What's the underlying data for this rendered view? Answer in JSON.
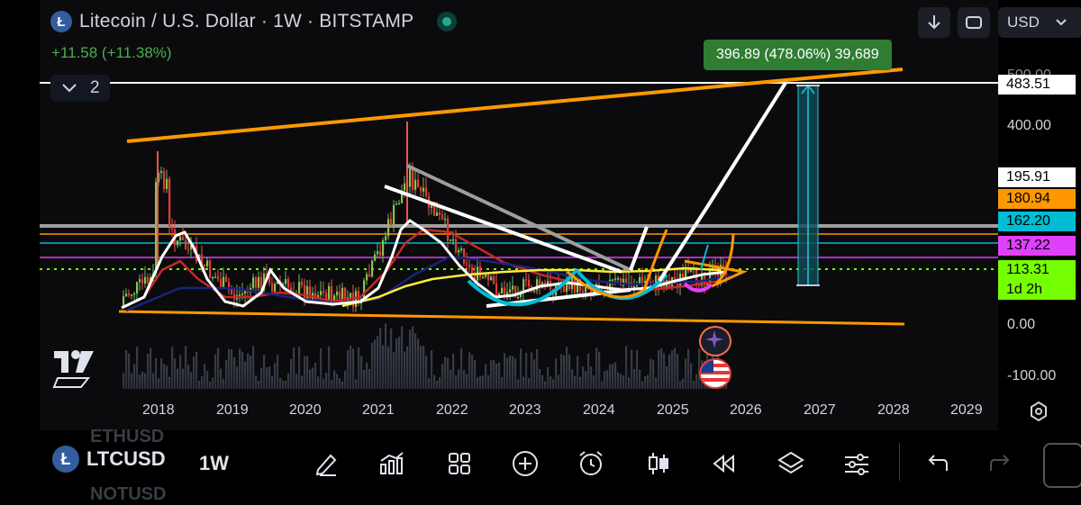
{
  "header": {
    "coin_letter": "Ł",
    "title": "Litecoin / U.S. Dollar · 1W · BITSTAMP",
    "change": "+11.58 (+11.38%)",
    "indicators_count": "2"
  },
  "top_buttons": {
    "currency": "USD"
  },
  "measure_label": "396.89 (478.06%) 39,689",
  "price_labels": [
    {
      "text": "483.51",
      "bg": "#ffffff",
      "fg": "#000000"
    },
    {
      "text": "195.91",
      "bg": "#ffffff",
      "fg": "#000000"
    },
    {
      "text": "180.94",
      "bg": "#ff9800",
      "fg": "#000000"
    },
    {
      "text": "162.20",
      "bg": "#00bcd4",
      "fg": "#000000"
    },
    {
      "text": "137.22",
      "bg": "#e040fb",
      "fg": "#000000"
    },
    {
      "text": "113.31",
      "bg": "#76ff03",
      "fg": "#000000"
    },
    {
      "text": "1d 2h",
      "bg": "#76ff03",
      "fg": "#000000"
    }
  ],
  "axis_labels": [
    "500.00",
    "400.00",
    "0.00",
    "-100.00"
  ],
  "years": [
    "2018",
    "2019",
    "2020",
    "2021",
    "2022",
    "2023",
    "2024",
    "2025",
    "2026",
    "2027",
    "2028",
    "2029"
  ],
  "bottom": {
    "symbol": "LTCUSD",
    "ghost_above": "ETHUSD",
    "ghost_below": "NOTUSD",
    "interval": "1W"
  },
  "icons": [
    "download-icon",
    "fullscreen-icon",
    "chevron-down-icon",
    "pencil-icon",
    "indicators-icon",
    "grid-icon",
    "plus-icon",
    "alarm-icon",
    "candles-icon",
    "rewind-icon",
    "layers-icon",
    "settings-sliders-icon",
    "undo-icon",
    "redo-icon",
    "tradingview-logo",
    "flag-icon",
    "ai-icon",
    "gear-icon"
  ]
}
